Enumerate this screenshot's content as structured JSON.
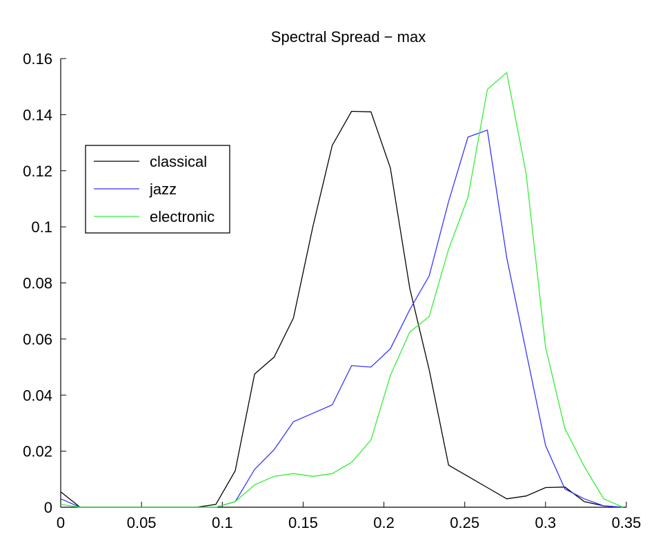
{
  "chart_data": {
    "type": "line",
    "title": "Spectral Spread − max",
    "xlabel": "",
    "ylabel": "",
    "xlim": [
      0,
      0.35
    ],
    "ylim": [
      0,
      0.16
    ],
    "xticks": [
      "0",
      "0.05",
      "0.1",
      "0.15",
      "0.2",
      "0.25",
      "0.3",
      "0.35"
    ],
    "yticks": [
      "0",
      "0.02",
      "0.04",
      "0.06",
      "0.08",
      "0.1",
      "0.12",
      "0.14",
      "0.16"
    ],
    "grid": false,
    "legend_position": "upper-left",
    "x": [
      0,
      0.012,
      0.024,
      0.036,
      0.048,
      0.06,
      0.072,
      0.084,
      0.096,
      0.108,
      0.12,
      0.132,
      0.144,
      0.156,
      0.168,
      0.18,
      0.192,
      0.204,
      0.216,
      0.228,
      0.24,
      0.252,
      0.264,
      0.276,
      0.288,
      0.3,
      0.312,
      0.324,
      0.336,
      0.348
    ],
    "series": [
      {
        "name": "classical",
        "color": "#000000",
        "values": [
          0.0055,
          0,
          0,
          0,
          0,
          0,
          0,
          0,
          0.001,
          0.013,
          0.0475,
          0.0535,
          0.0675,
          0.1,
          0.129,
          0.1412,
          0.141,
          0.121,
          0.078,
          0.049,
          0.015,
          0.011,
          0.007,
          0.003,
          0.004,
          0.007,
          0.0072,
          0.002,
          0.0005,
          0
        ]
      },
      {
        "name": "jazz",
        "color": "#3333ff",
        "values": [
          0.003,
          0,
          0,
          0,
          0,
          0,
          0,
          0,
          0,
          0.002,
          0.0135,
          0.0205,
          0.0305,
          0.0335,
          0.0365,
          0.0505,
          0.05,
          0.0565,
          0.0705,
          0.0825,
          0.109,
          0.132,
          0.1345,
          0.089,
          0.0555,
          0.022,
          0.0065,
          0.003,
          0.0005,
          0
        ]
      },
      {
        "name": "electronic",
        "color": "#33ee33",
        "values": [
          0.001,
          0,
          0,
          0,
          0,
          0,
          0,
          0,
          0,
          0.002,
          0.008,
          0.011,
          0.012,
          0.011,
          0.012,
          0.016,
          0.024,
          0.047,
          0.0625,
          0.068,
          0.092,
          0.1105,
          0.149,
          0.155,
          0.119,
          0.057,
          0.028,
          0.0145,
          0.003,
          0
        ]
      }
    ]
  }
}
